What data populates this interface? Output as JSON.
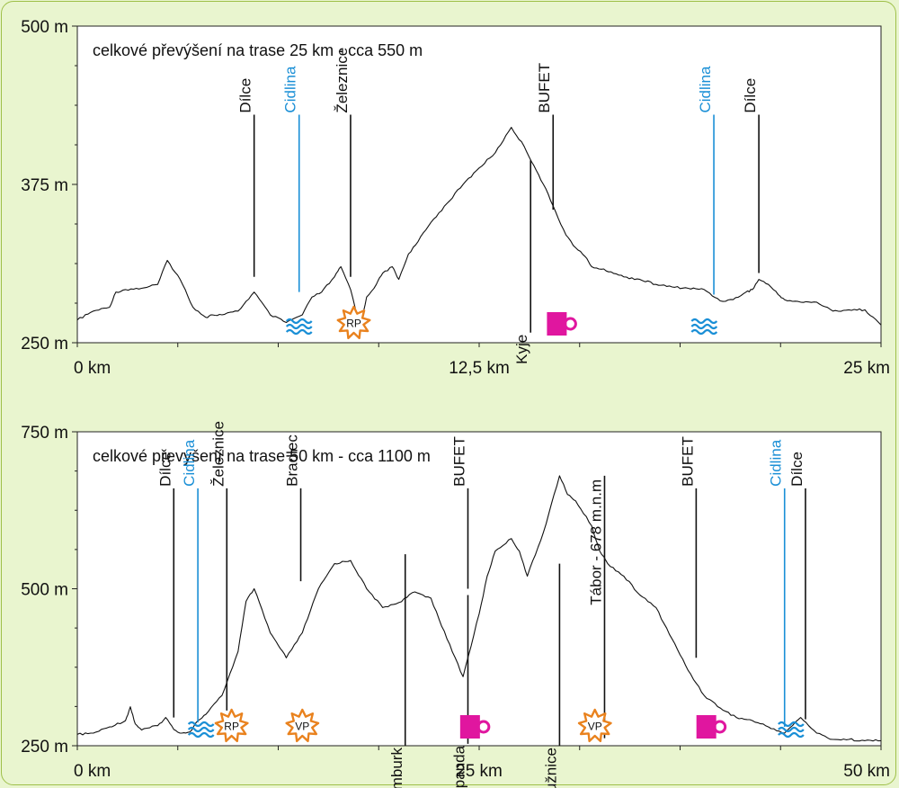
{
  "colors": {
    "background": "#e9f5cf",
    "border": "#9fc04a",
    "water": "#1a8fd6",
    "buffet": "#e0169f",
    "star": "#e9821e",
    "profile": "#111111"
  },
  "chart_data": [
    {
      "type": "line",
      "title": "celkové převýšení na trase 25 km - cca 550 m",
      "xlim": [
        0,
        25
      ],
      "ylim": [
        250,
        500
      ],
      "x_ticks": [
        {
          "v": 0,
          "label": "0 km"
        },
        {
          "v": 12.5,
          "label": "12,5 km"
        },
        {
          "v": 25,
          "label": "25 km"
        }
      ],
      "y_ticks": [
        {
          "v": 250,
          "label": "250 m"
        },
        {
          "v": 375,
          "label": "375 m"
        },
        {
          "v": 500,
          "label": "500 m"
        }
      ],
      "series": [
        {
          "x": [
            0,
            0.5,
            1,
            1.2,
            1.5,
            2,
            2.5,
            2.8,
            3.2,
            3.6,
            4,
            4.2,
            4.5,
            5,
            5.5,
            6,
            6.5,
            7,
            7.3,
            7.6,
            8,
            8.2,
            8.5,
            8.8,
            9,
            9.3,
            9.5,
            9.8,
            10,
            10.3,
            10.6,
            11,
            11.5,
            12,
            12.5,
            13,
            13.5,
            13.9,
            14.2,
            14.5,
            14.8,
            15.2,
            15.5,
            15.8,
            16,
            16.3,
            16.6,
            17,
            17.5,
            18,
            18.5,
            19,
            19.5,
            20,
            20.4,
            20.8,
            21,
            21.2,
            21.5,
            21.8,
            22,
            22.5,
            23,
            23.5,
            24,
            24.5,
            25
          ],
          "y": [
            268,
            275,
            278,
            290,
            292,
            293,
            296,
            315,
            300,
            278,
            270,
            272,
            272,
            275,
            290,
            272,
            266,
            272,
            286,
            290,
            302,
            310,
            292,
            263,
            286,
            296,
            305,
            310,
            300,
            320,
            330,
            345,
            360,
            375,
            388,
            400,
            420,
            405,
            390,
            375,
            358,
            335,
            325,
            318,
            310,
            308,
            306,
            302,
            300,
            296,
            294,
            293,
            292,
            283,
            284,
            290,
            292,
            300,
            296,
            288,
            284,
            282,
            282,
            275,
            276,
            276,
            264
          ]
        }
      ],
      "markers": [
        {
          "x": 5.5,
          "label": "Dílce",
          "color": "black",
          "top": 430,
          "bottom": 302
        },
        {
          "x": 6.9,
          "label": "Cidlina",
          "color": "blue",
          "top": 430,
          "bottom": 290
        },
        {
          "x": 8.5,
          "label": "Železnice",
          "color": "black",
          "top": 430,
          "bottom": 302
        },
        {
          "x": 14.1,
          "label": "Kyje",
          "color": "black",
          "top": 394,
          "bottom": 258,
          "label_pos": "below"
        },
        {
          "x": 14.8,
          "label": "BUFET",
          "color": "black",
          "top": 430,
          "bottom": 355
        },
        {
          "x": 19.8,
          "label": "Cidlina",
          "color": "blue",
          "top": 430,
          "bottom": 288
        },
        {
          "x": 21.2,
          "label": "Dílce",
          "color": "black",
          "top": 430,
          "bottom": 305
        }
      ],
      "icons": [
        {
          "x": 6.9,
          "kind": "water-icon"
        },
        {
          "x": 8.6,
          "kind": "star-badge",
          "label": "RP"
        },
        {
          "x": 15,
          "kind": "cup-icon"
        },
        {
          "x": 19.5,
          "kind": "water-icon"
        }
      ]
    },
    {
      "type": "line",
      "title": "celkové převýšení na trase 50 km - cca 1100 m",
      "xlim": [
        0,
        50
      ],
      "ylim": [
        250,
        750
      ],
      "x_ticks": [
        {
          "v": 0,
          "label": "0 km"
        },
        {
          "v": 25,
          "label": "25 km"
        },
        {
          "v": 50,
          "label": "50 km"
        }
      ],
      "y_ticks": [
        {
          "v": 250,
          "label": "250 m"
        },
        {
          "v": 500,
          "label": "500 m"
        },
        {
          "v": 750,
          "label": "750 m"
        }
      ],
      "series": [
        {
          "x": [
            0,
            1,
            2,
            3,
            3.3,
            3.6,
            4,
            5,
            5.5,
            6,
            6.5,
            7,
            7.5,
            8,
            9,
            10,
            10.5,
            11,
            12,
            12.5,
            13,
            14,
            15,
            16,
            17,
            18,
            19,
            20,
            21,
            22,
            23,
            24,
            25,
            25.5,
            26,
            27,
            27.5,
            28,
            29,
            30,
            30.5,
            31,
            32,
            32.5,
            33,
            34,
            35,
            36,
            37,
            38,
            39,
            40,
            41,
            42,
            43,
            44,
            45,
            46,
            47,
            48,
            49,
            50
          ],
          "y": [
            268,
            270,
            280,
            290,
            312,
            285,
            275,
            282,
            295,
            276,
            270,
            272,
            290,
            300,
            330,
            400,
            480,
            500,
            430,
            410,
            390,
            430,
            500,
            540,
            545,
            500,
            470,
            478,
            495,
            485,
            420,
            360,
            460,
            520,
            560,
            580,
            560,
            520,
            590,
            680,
            650,
            640,
            600,
            560,
            540,
            520,
            490,
            470,
            420,
            370,
            330,
            310,
            295,
            290,
            280,
            270,
            295,
            270,
            260,
            260,
            258,
            258
          ]
        }
      ],
      "markers": [
        {
          "x": 6,
          "label": "Dílce",
          "color": "black",
          "top": 660,
          "bottom": 295
        },
        {
          "x": 7.5,
          "label": "Cidlina",
          "color": "blue",
          "top": 660,
          "bottom": 287
        },
        {
          "x": 9.3,
          "label": "Železnice",
          "color": "black",
          "top": 660,
          "bottom": 306
        },
        {
          "x": 13.9,
          "label": "Bradlec",
          "color": "black",
          "top": 660,
          "bottom": 512
        },
        {
          "x": 20.4,
          "label": "Kumburk",
          "color": "black",
          "top": 555,
          "bottom": 250,
          "label_pos": "below"
        },
        {
          "x": 24.3,
          "label": "BUFET",
          "color": "black",
          "top": 660,
          "bottom": 500
        },
        {
          "x": 24.3,
          "label": "Klepanda",
          "color": "black",
          "top": 490,
          "bottom": 253,
          "label_pos": "below"
        },
        {
          "x": 30,
          "label": "Ploužnice",
          "color": "black",
          "top": 540,
          "bottom": 250,
          "label_pos": "below"
        },
        {
          "x": 32.8,
          "label": "Tábor - 678 m.n.m",
          "color": "black",
          "top": 680,
          "bottom": 262,
          "label_pos": "inline"
        },
        {
          "x": 38.5,
          "label": "BUFET",
          "color": "black",
          "top": 660,
          "bottom": 390
        },
        {
          "x": 44,
          "label": "Cidlina",
          "color": "blue",
          "top": 660,
          "bottom": 280
        },
        {
          "x": 45.3,
          "label": "Dílce",
          "color": "black",
          "top": 660,
          "bottom": 292
        }
      ],
      "icons": [
        {
          "x": 7.7,
          "kind": "water-icon"
        },
        {
          "x": 9.6,
          "kind": "star-badge",
          "label": "RP"
        },
        {
          "x": 14,
          "kind": "star-badge",
          "label": "VP"
        },
        {
          "x": 24.6,
          "kind": "cup-icon"
        },
        {
          "x": 32.2,
          "kind": "star-badge",
          "label": "VP"
        },
        {
          "x": 39.3,
          "kind": "cup-icon"
        },
        {
          "x": 44.4,
          "kind": "water-icon"
        }
      ]
    }
  ]
}
